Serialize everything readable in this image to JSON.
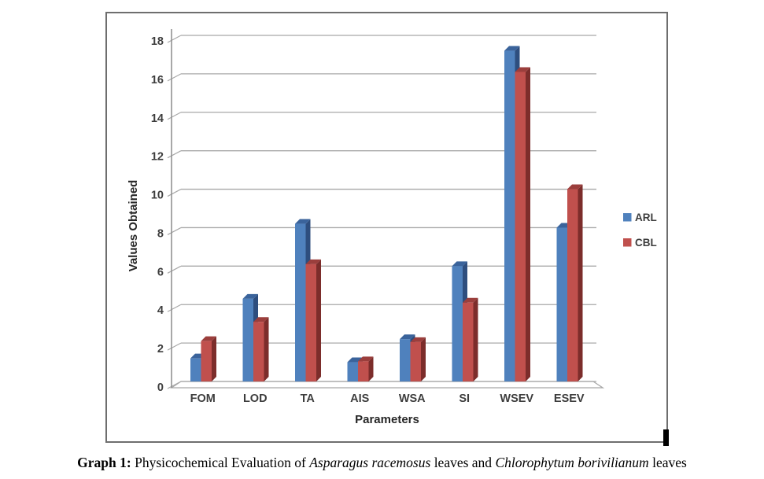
{
  "chart_data": {
    "type": "bar",
    "style": "3d-clustered-column",
    "categories": [
      "FOM",
      "LOD",
      "TA",
      "AIS",
      "WSA",
      "SI",
      "WSEV",
      "ESEV"
    ],
    "series": [
      {
        "name": "ARL",
        "color": "#4F81BD",
        "top_color": "#3A639B",
        "side_color": "#2E4E7E",
        "values": [
          1.2,
          4.3,
          8.2,
          1.0,
          2.2,
          6.0,
          17.2,
          8.0
        ]
      },
      {
        "name": "CBL",
        "color": "#C0504D",
        "top_color": "#9B3E3C",
        "side_color": "#7C2D2B",
        "values": [
          2.1,
          3.1,
          6.1,
          1.05,
          2.05,
          4.1,
          16.1,
          10.0
        ]
      }
    ],
    "xlabel": "Parameters",
    "ylabel": "Values Obtained",
    "ylim": [
      0,
      18
    ],
    "ytick_step": 2,
    "grid": true,
    "legend_position": "right",
    "grid_color": "#a8a8a8",
    "axis_color": "#8c8c8c",
    "tick_label_color": "#3d3d3d",
    "axis_title_color": "#262626"
  },
  "caption": {
    "label": "Graph 1:",
    "part1": " Physicochemical Evaluation of ",
    "italic1": "Asparagus racemosus",
    "part2": " leaves and ",
    "italic2": "Chlorophytum borivilianum",
    "part3": " leaves"
  }
}
